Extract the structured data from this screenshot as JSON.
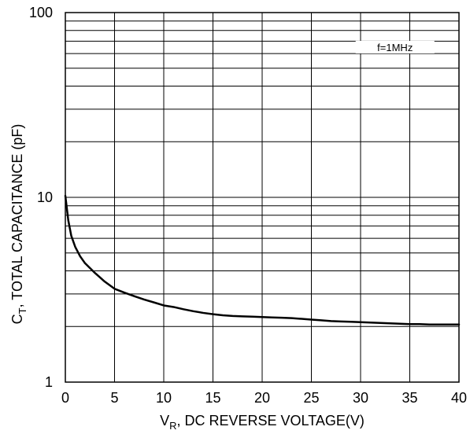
{
  "chart_data": {
    "type": "line",
    "xscale": "linear",
    "yscale": "log",
    "xlim": [
      0,
      40
    ],
    "ylim": [
      1,
      100
    ],
    "grid": true,
    "x_ticks": [
      0,
      5,
      10,
      15,
      20,
      25,
      30,
      35,
      40
    ],
    "x_tick_labels": [
      "0",
      "5",
      "10",
      "15",
      "20",
      "25",
      "30",
      "35",
      "40"
    ],
    "y_ticks": [
      1,
      10,
      100
    ],
    "y_tick_labels": [
      "1",
      "10",
      "100"
    ],
    "ylabel": {
      "main": "C",
      "sub": "T",
      "rest": ", TOTAL CAPACITANCE (pF)"
    },
    "xlabel": {
      "main": "V",
      "sub": "R",
      "rest": ", DC REVERSE VOLTAGE(V)"
    },
    "annotations": [
      "f=1MHz"
    ],
    "series": [
      {
        "x": [
          0,
          0.3,
          0.6,
          1,
          1.5,
          2,
          3,
          4,
          5,
          6,
          7,
          8,
          9,
          10,
          11,
          12,
          13,
          14,
          15,
          16,
          17,
          18,
          19,
          20,
          21,
          22,
          23,
          24,
          25,
          26,
          27,
          28,
          29,
          30,
          31,
          32,
          33,
          34,
          35,
          36,
          37,
          38,
          39,
          40
        ],
        "y": [
          10.2,
          7.5,
          6.2,
          5.4,
          4.8,
          4.4,
          3.9,
          3.5,
          3.2,
          3.05,
          2.92,
          2.8,
          2.7,
          2.6,
          2.55,
          2.48,
          2.42,
          2.37,
          2.33,
          2.3,
          2.28,
          2.27,
          2.26,
          2.25,
          2.24,
          2.23,
          2.22,
          2.2,
          2.18,
          2.16,
          2.14,
          2.13,
          2.12,
          2.11,
          2.1,
          2.09,
          2.08,
          2.07,
          2.06,
          2.06,
          2.05,
          2.05,
          2.05,
          2.05
        ]
      }
    ]
  }
}
